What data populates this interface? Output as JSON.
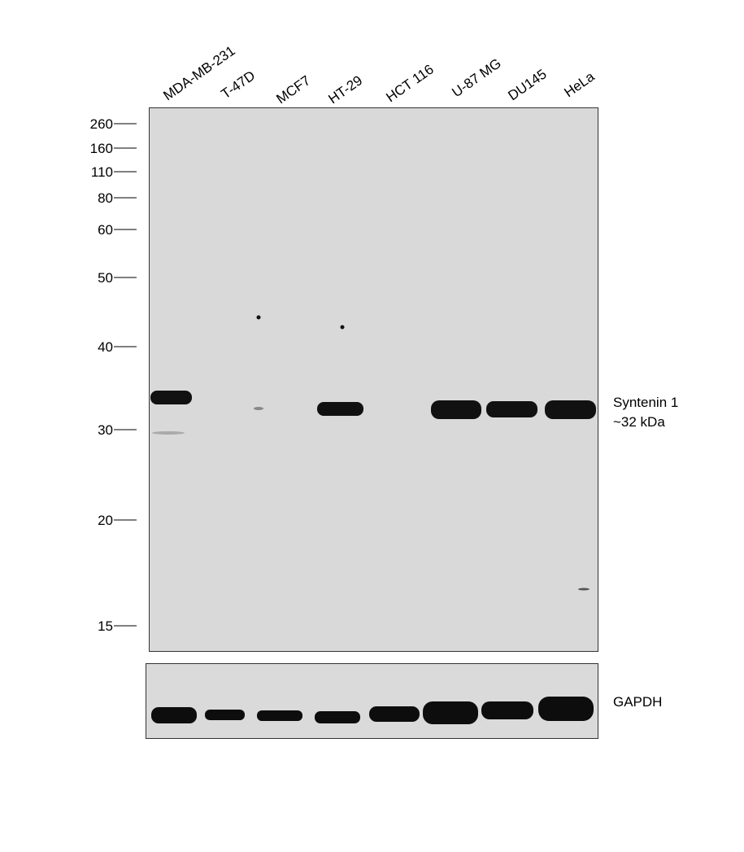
{
  "lanes": [
    "MDA-MB-231",
    "T-47D",
    "MCF7",
    "HT-29",
    "HCT 116",
    "U-87 MG",
    "DU145",
    "HeLa"
  ],
  "markers": [
    260,
    160,
    110,
    80,
    60,
    50,
    40,
    30,
    20,
    15
  ],
  "target": {
    "name": "Syntenin 1",
    "size": "~32 kDa"
  },
  "loading_control": "GAPDH"
}
